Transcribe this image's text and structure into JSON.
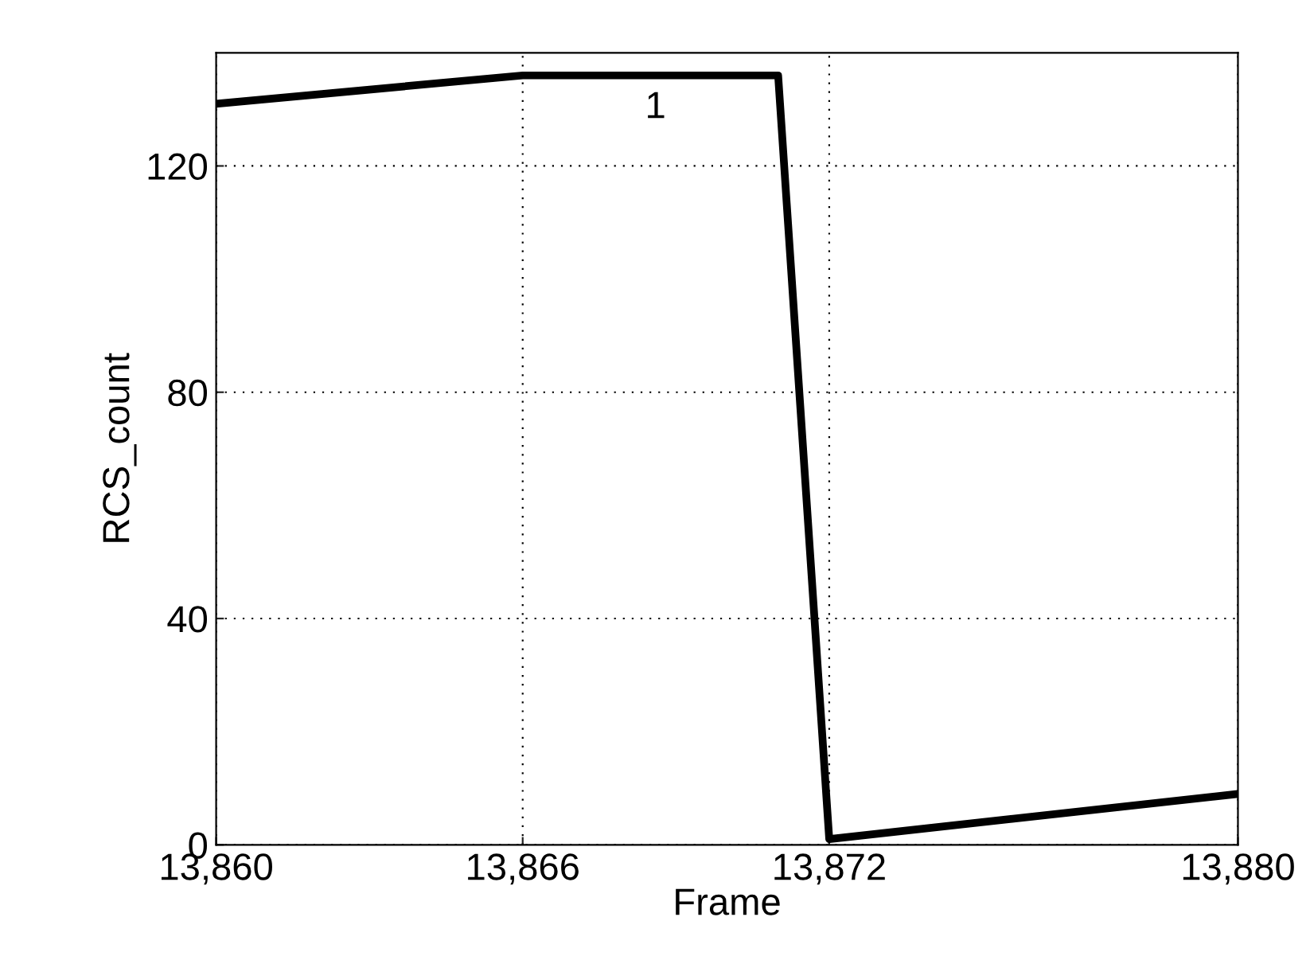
{
  "chart_data": {
    "type": "line",
    "xlabel": "Frame",
    "ylabel": "RCS_count",
    "x": [
      13860,
      13866,
      13871,
      13872,
      13880
    ],
    "series": [
      {
        "color": "#000000",
        "values": [
          131,
          136,
          136,
          1,
          9
        ]
      }
    ],
    "xlim": [
      13860,
      13880
    ],
    "xticks": [
      {
        "value": 13860,
        "label": "13,860"
      },
      {
        "value": 13866,
        "label": "13,866"
      },
      {
        "value": 13872,
        "label": "13,872"
      },
      {
        "value": 13880,
        "label": "13,880"
      }
    ],
    "ylim": [
      0,
      140
    ],
    "yticks": [
      0,
      40,
      80,
      120
    ],
    "grid": true,
    "line_style": "solid",
    "annotations": [
      "1"
    ]
  }
}
